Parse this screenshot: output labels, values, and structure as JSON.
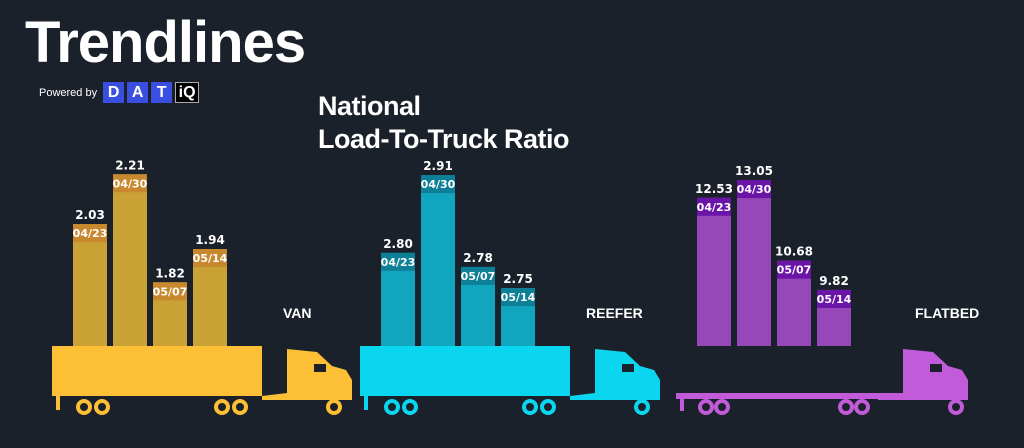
{
  "header": {
    "brand": "Trendlines",
    "powered_by": "Powered by",
    "logo_letters": [
      "D",
      "A",
      "T",
      "iQ"
    ]
  },
  "chart_data": {
    "type": "bar",
    "title": "National Load-To-Truck Ratio",
    "title_lines": [
      "National",
      "Load-To-Truck Ratio"
    ],
    "categories": [
      "04/23",
      "04/30",
      "05/07",
      "05/14"
    ],
    "series": [
      {
        "name": "VAN",
        "values": [
          2.03,
          2.21,
          1.82,
          1.94
        ],
        "labels": [
          "2.03",
          "2.21",
          "1.82",
          "1.94"
        ],
        "colors": {
          "bar": "#c9a135",
          "band": "#c8882e",
          "truck": "#fdbf35"
        }
      },
      {
        "name": "REEFER",
        "values": [
          2.8,
          2.91,
          2.78,
          2.75
        ],
        "labels": [
          "2.80",
          "2.91",
          "2.78",
          "2.75"
        ],
        "colors": {
          "bar": "#12a5c0",
          "band": "#0d7f96",
          "truck": "#0bd6f0"
        }
      },
      {
        "name": "FLATBED",
        "values": [
          12.53,
          13.05,
          10.68,
          9.82
        ],
        "labels": [
          "12.53",
          "13.05",
          "10.68",
          "9.82"
        ],
        "colors": {
          "bar": "#9648b8",
          "band": "#6a14a8",
          "truck": "#c25bd9"
        }
      }
    ],
    "background": "#1b212a"
  }
}
